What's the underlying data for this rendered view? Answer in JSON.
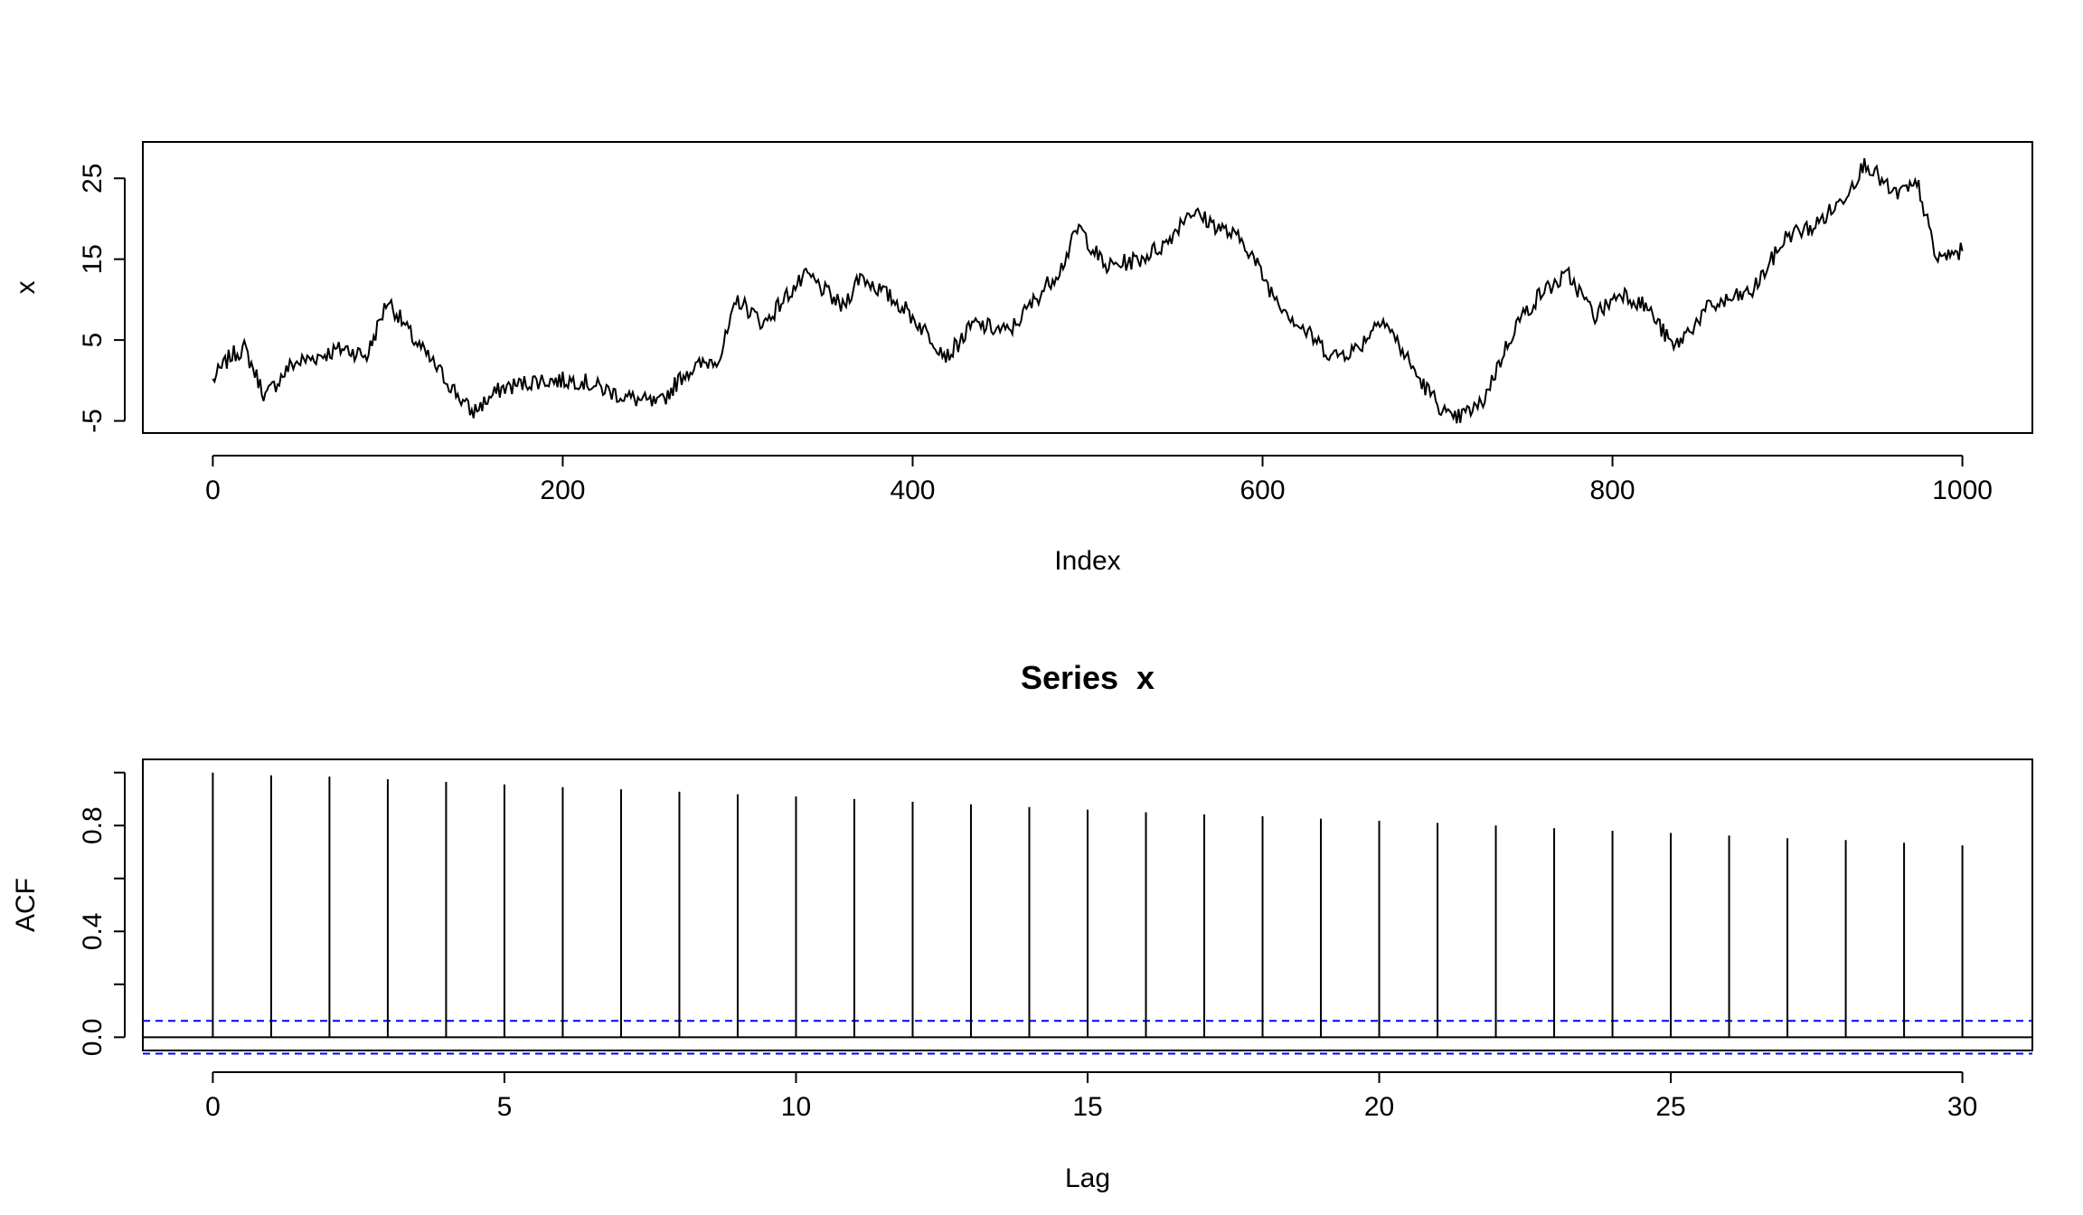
{
  "chart_data": [
    {
      "type": "line",
      "title": "",
      "xlabel": "Index",
      "ylabel": "x",
      "xlim": [
        -40,
        1040
      ],
      "ylim": [
        -6.5,
        29.5
      ],
      "x_ticks": [
        0,
        200,
        400,
        600,
        800,
        1000
      ],
      "y_ticks": [
        -5,
        5,
        15,
        25
      ],
      "x_tick_labels": [
        "0",
        "200",
        "400",
        "600",
        "800",
        "1000"
      ],
      "y_tick_labels": [
        "-5",
        "5",
        "15",
        "25"
      ],
      "grid": false,
      "series": [
        {
          "color": "#000000",
          "x": [
            0,
            10,
            18,
            30,
            45,
            60,
            75,
            88,
            100,
            115,
            130,
            148,
            165,
            185,
            210,
            235,
            255,
            270,
            290,
            300,
            315,
            330,
            340,
            360,
            370,
            395,
            420,
            435,
            455,
            470,
            485,
            495,
            510,
            530,
            545,
            558,
            575,
            590,
            605,
            620,
            640,
            655,
            668,
            690,
            708,
            725,
            745,
            760,
            775,
            790,
            805,
            820,
            835,
            855,
            880,
            900,
            915,
            930,
            945,
            960,
            975,
            985,
            1000
          ],
          "values": [
            0,
            3,
            4,
            -2,
            2,
            3,
            4,
            3,
            10,
            5,
            1,
            -4,
            -1,
            0,
            0,
            -2,
            -3,
            1,
            3,
            10,
            7,
            11,
            13,
            9,
            13,
            9,
            3,
            7,
            6,
            10,
            14,
            19,
            14,
            15,
            17,
            21,
            19,
            17,
            11,
            7,
            3,
            4,
            8,
            0,
            -5,
            -3,
            7,
            11,
            13,
            8,
            11,
            9,
            4,
            9,
            11,
            18,
            19,
            22,
            27,
            23,
            24,
            15,
            16
          ]
        }
      ]
    },
    {
      "type": "bar",
      "title": "Series  x",
      "xlabel": "Lag",
      "ylabel": "ACF",
      "xlim": [
        -1.2,
        31.2
      ],
      "ylim": [
        -0.05,
        1.05
      ],
      "x_ticks": [
        0,
        5,
        10,
        15,
        20,
        25,
        30
      ],
      "y_ticks": [
        0.0,
        0.2,
        0.4,
        0.6,
        0.8,
        1.0
      ],
      "x_tick_labels": [
        "0",
        "5",
        "10",
        "15",
        "20",
        "25",
        "30"
      ],
      "y_tick_labels": [
        "0.0",
        "",
        "0.4",
        "",
        "0.8",
        ""
      ],
      "grid": false,
      "lags": [
        0,
        1,
        2,
        3,
        4,
        5,
        6,
        7,
        8,
        9,
        10,
        11,
        12,
        13,
        14,
        15,
        16,
        17,
        18,
        19,
        20,
        21,
        22,
        23,
        24,
        25,
        26,
        27,
        28,
        29,
        30
      ],
      "values": [
        1.0,
        0.99,
        0.985,
        0.975,
        0.965,
        0.955,
        0.945,
        0.937,
        0.928,
        0.918,
        0.91,
        0.9,
        0.89,
        0.88,
        0.87,
        0.86,
        0.85,
        0.842,
        0.835,
        0.826,
        0.818,
        0.81,
        0.8,
        0.79,
        0.78,
        0.772,
        0.762,
        0.752,
        0.745,
        0.735,
        0.725
      ],
      "confidence_band": 0.062,
      "confidence_color": "#0000ff",
      "bar_color": "#000000"
    }
  ]
}
